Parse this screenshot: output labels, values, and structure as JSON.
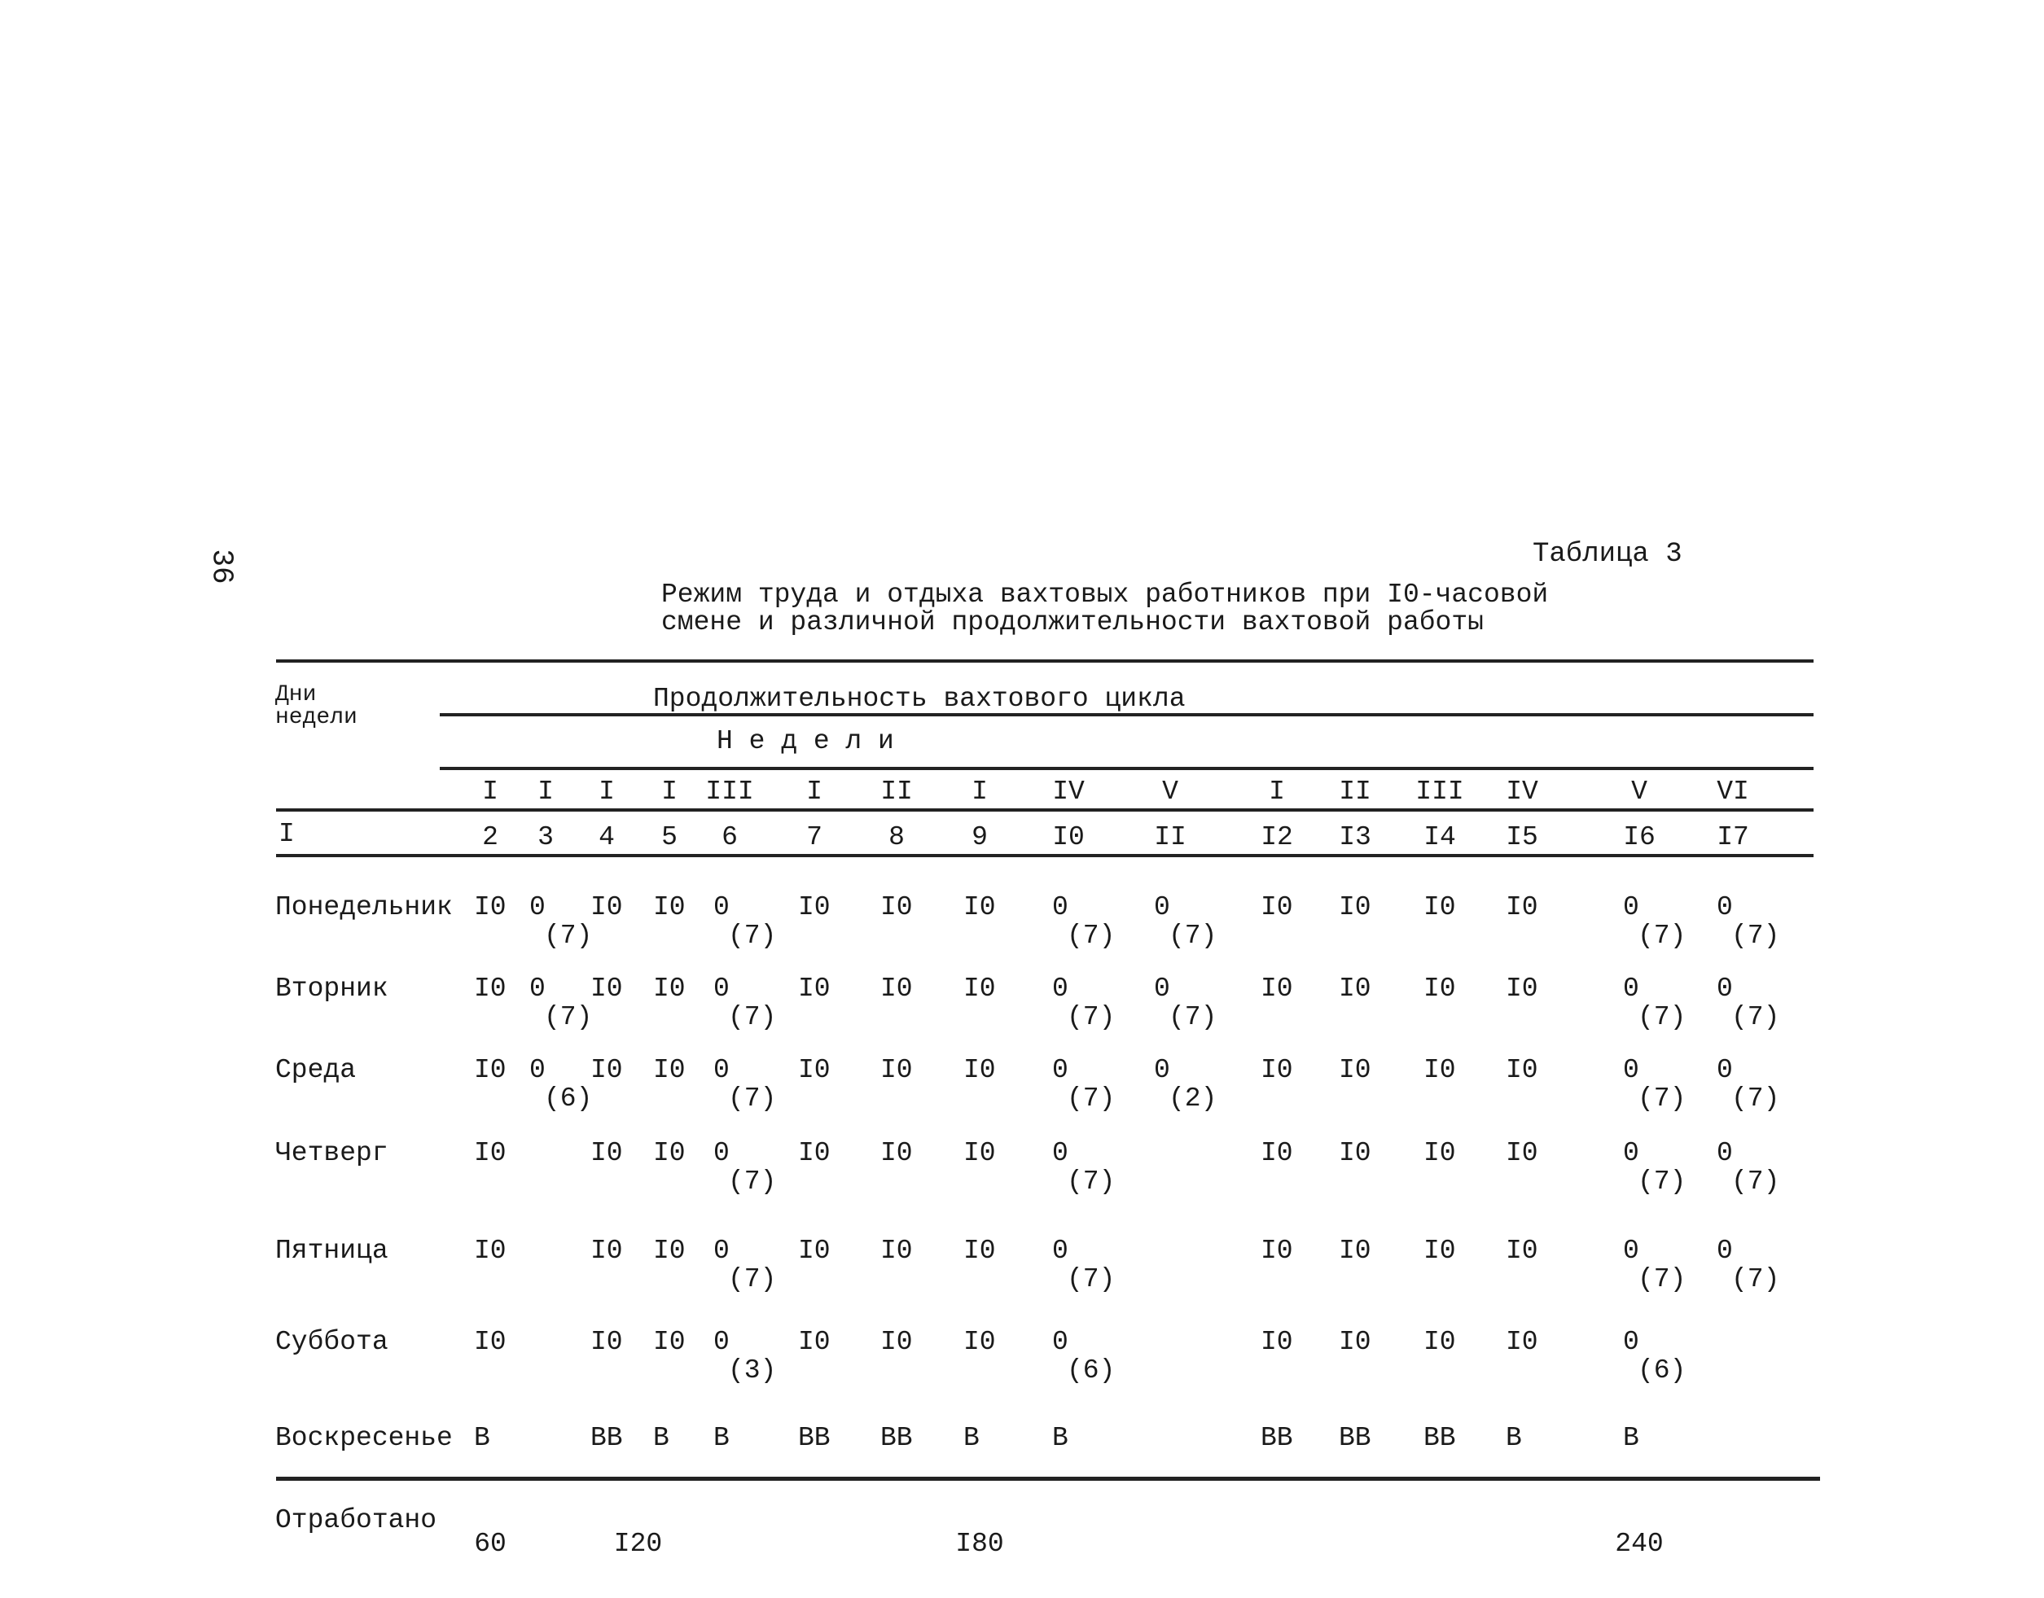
{
  "page_number": "36",
  "table_label": "Таблица 3",
  "caption": [
    "Режим труда и отдыха вахтовых работников при I0-часовой",
    "смене и различной продолжительности вахтовой работы"
  ],
  "header": {
    "row_label": "Дни недели",
    "row_label_index": "I",
    "span_title": "Продолжительность вахтового цикла",
    "weeks_label": "Н е д е л и",
    "weeks": [
      "I",
      "I",
      "I",
      "I",
      "III",
      "I",
      "II",
      "I",
      "IV",
      "V",
      "I",
      "II",
      "III",
      "IV",
      "V",
      "VI"
    ],
    "column_numbers": [
      "2",
      "3",
      "4",
      "5",
      "6",
      "7",
      "8",
      "9",
      "I0",
      "II",
      "I2",
      "I3",
      "I4",
      "I5",
      "I6",
      "I7"
    ]
  },
  "rows": [
    {
      "day": "Понедельник",
      "cells": [
        [
          "I0",
          ""
        ],
        [
          "0",
          "(7)"
        ],
        [
          "I0",
          ""
        ],
        [
          "I0",
          ""
        ],
        [
          "0",
          "(7)"
        ],
        [
          "I0",
          ""
        ],
        [
          "I0",
          ""
        ],
        [
          "I0",
          ""
        ],
        [
          "0",
          "(7)"
        ],
        [
          "0",
          "(7)"
        ],
        [
          "I0",
          ""
        ],
        [
          "I0",
          ""
        ],
        [
          "I0",
          ""
        ],
        [
          "I0",
          ""
        ],
        [
          "0",
          "(7)"
        ],
        [
          "0",
          "(7)"
        ]
      ]
    },
    {
      "day": "Вторник",
      "cells": [
        [
          "I0",
          ""
        ],
        [
          "0",
          "(7)"
        ],
        [
          "I0",
          ""
        ],
        [
          "I0",
          ""
        ],
        [
          "0",
          "(7)"
        ],
        [
          "I0",
          ""
        ],
        [
          "I0",
          ""
        ],
        [
          "I0",
          ""
        ],
        [
          "0",
          "(7)"
        ],
        [
          "0",
          "(7)"
        ],
        [
          "I0",
          ""
        ],
        [
          "I0",
          ""
        ],
        [
          "I0",
          ""
        ],
        [
          "I0",
          ""
        ],
        [
          "0",
          "(7)"
        ],
        [
          "0",
          "(7)"
        ]
      ]
    },
    {
      "day": "Среда",
      "cells": [
        [
          "I0",
          ""
        ],
        [
          "0",
          "(6)"
        ],
        [
          "I0",
          ""
        ],
        [
          "I0",
          ""
        ],
        [
          "0",
          "(7)"
        ],
        [
          "I0",
          ""
        ],
        [
          "I0",
          ""
        ],
        [
          "I0",
          ""
        ],
        [
          "0",
          "(7)"
        ],
        [
          "0",
          "(2)"
        ],
        [
          "I0",
          ""
        ],
        [
          "I0",
          ""
        ],
        [
          "I0",
          ""
        ],
        [
          "I0",
          ""
        ],
        [
          "0",
          "(7)"
        ],
        [
          "0",
          "(7)"
        ]
      ]
    },
    {
      "day": "Четверг",
      "cells": [
        [
          "I0",
          ""
        ],
        [
          "",
          ""
        ],
        [
          "I0",
          ""
        ],
        [
          "I0",
          ""
        ],
        [
          "0",
          "(7)"
        ],
        [
          "I0",
          ""
        ],
        [
          "I0",
          ""
        ],
        [
          "I0",
          ""
        ],
        [
          "0",
          "(7)"
        ],
        [
          "",
          ""
        ],
        [
          "I0",
          ""
        ],
        [
          "I0",
          ""
        ],
        [
          "I0",
          ""
        ],
        [
          "I0",
          ""
        ],
        [
          "0",
          "(7)"
        ],
        [
          "0",
          "(7)"
        ]
      ]
    },
    {
      "day": "Пятница",
      "cells": [
        [
          "I0",
          ""
        ],
        [
          "",
          ""
        ],
        [
          "I0",
          ""
        ],
        [
          "I0",
          ""
        ],
        [
          "0",
          "(7)"
        ],
        [
          "I0",
          ""
        ],
        [
          "I0",
          ""
        ],
        [
          "I0",
          ""
        ],
        [
          "0",
          "(7)"
        ],
        [
          "",
          ""
        ],
        [
          "I0",
          ""
        ],
        [
          "I0",
          ""
        ],
        [
          "I0",
          ""
        ],
        [
          "I0",
          ""
        ],
        [
          "0",
          "(7)"
        ],
        [
          "0",
          "(7)"
        ]
      ]
    },
    {
      "day": "Суббота",
      "cells": [
        [
          "I0",
          ""
        ],
        [
          "",
          ""
        ],
        [
          "I0",
          ""
        ],
        [
          "I0",
          ""
        ],
        [
          "0",
          "(3)"
        ],
        [
          "I0",
          ""
        ],
        [
          "I0",
          ""
        ],
        [
          "I0",
          ""
        ],
        [
          "0",
          "(6)"
        ],
        [
          "",
          ""
        ],
        [
          "I0",
          ""
        ],
        [
          "I0",
          ""
        ],
        [
          "I0",
          ""
        ],
        [
          "I0",
          ""
        ],
        [
          "0",
          "(6)"
        ],
        [
          "",
          ""
        ]
      ]
    },
    {
      "day": "Воскресенье",
      "cells": [
        [
          "В",
          ""
        ],
        [
          "",
          ""
        ],
        [
          "ВВ",
          ""
        ],
        [
          "В",
          ""
        ],
        [
          "В",
          ""
        ],
        [
          "ВВ",
          ""
        ],
        [
          "ВВ",
          ""
        ],
        [
          "В",
          ""
        ],
        [
          "В",
          ""
        ],
        [
          "",
          ""
        ],
        [
          "ВВ",
          ""
        ],
        [
          "ВВ",
          ""
        ],
        [
          "ВВ",
          ""
        ],
        [
          "В",
          ""
        ],
        [
          "В",
          ""
        ],
        [
          "",
          ""
        ]
      ]
    }
  ],
  "footer": {
    "label": "Отработано",
    "values": [
      {
        "col": 0,
        "value": "60"
      },
      {
        "col": 2,
        "value": "I20"
      },
      {
        "col": 7,
        "value": "I80"
      },
      {
        "col": 14,
        "value": "240"
      }
    ]
  }
}
